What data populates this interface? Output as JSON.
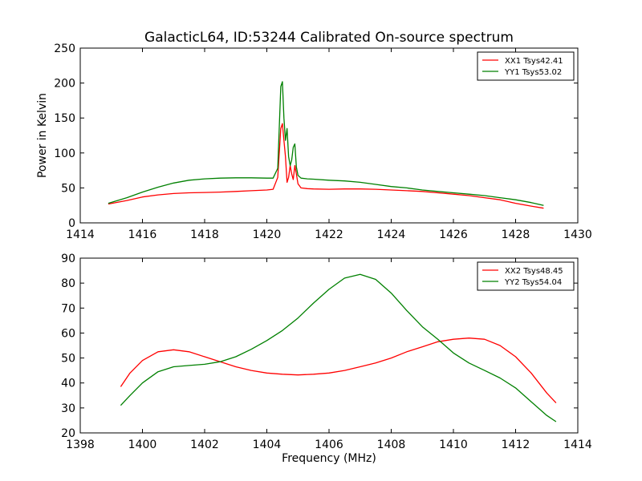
{
  "chart_data": [
    {
      "type": "line",
      "title": "GalacticL64, ID:53244 Calibrated On-source spectrum",
      "xlabel": "",
      "ylabel": "Power in Kelvin",
      "xlim": [
        1414,
        1430
      ],
      "ylim": [
        0,
        250
      ],
      "xticks": [
        "1414",
        "1416",
        "1418",
        "1420",
        "1422",
        "1424",
        "1426",
        "1428",
        "1430"
      ],
      "yticks": [
        "0",
        "50",
        "100",
        "150",
        "200",
        "250"
      ],
      "legend_position": "top-right",
      "grid": false,
      "series": [
        {
          "name": "XX1 Tsys42.41",
          "color": "#ff0000",
          "x": [
            1414.9,
            1415.5,
            1416.0,
            1416.5,
            1417.0,
            1417.5,
            1418.0,
            1418.5,
            1419.0,
            1419.5,
            1420.0,
            1420.2,
            1420.35,
            1420.45,
            1420.5,
            1420.55,
            1420.6,
            1420.65,
            1420.7,
            1420.75,
            1420.8,
            1420.85,
            1420.9,
            1420.95,
            1421.0,
            1421.1,
            1421.3,
            1421.5,
            1422.0,
            1422.5,
            1423.0,
            1423.5,
            1424.0,
            1424.5,
            1425.0,
            1425.5,
            1426.0,
            1426.5,
            1427.0,
            1427.5,
            1428.0,
            1428.5,
            1428.9
          ],
          "y": [
            27,
            32,
            37,
            40,
            42,
            43,
            43.5,
            44,
            45,
            46,
            47,
            48,
            65,
            135,
            142,
            118,
            95,
            58,
            65,
            82,
            70,
            62,
            82,
            70,
            56,
            50,
            49,
            48.5,
            48,
            48.5,
            48.5,
            48,
            47,
            46,
            45,
            43,
            41,
            39,
            36,
            33,
            28,
            24,
            21
          ]
        },
        {
          "name": "YY1 Tsys53.02",
          "color": "#008000",
          "x": [
            1414.9,
            1415.5,
            1416.0,
            1416.5,
            1417.0,
            1417.5,
            1418.0,
            1418.5,
            1419.0,
            1419.5,
            1420.0,
            1420.2,
            1420.35,
            1420.45,
            1420.5,
            1420.55,
            1420.6,
            1420.65,
            1420.7,
            1420.75,
            1420.8,
            1420.85,
            1420.9,
            1420.95,
            1421.0,
            1421.1,
            1421.3,
            1421.5,
            1422.0,
            1422.5,
            1423.0,
            1423.5,
            1424.0,
            1424.5,
            1425.0,
            1425.5,
            1426.0,
            1426.5,
            1427.0,
            1427.5,
            1428.0,
            1428.5,
            1428.9
          ],
          "y": [
            28,
            36,
            44,
            51,
            57,
            61,
            63,
            64,
            64.5,
            64.5,
            64,
            64,
            78,
            195,
            202,
            150,
            118,
            135,
            95,
            82,
            90,
            108,
            113,
            80,
            68,
            64,
            63,
            62.5,
            61,
            60,
            58,
            55,
            52,
            50,
            47,
            45,
            43,
            41,
            39,
            36,
            33,
            29,
            25
          ]
        }
      ]
    },
    {
      "type": "line",
      "title": "",
      "xlabel": "Frequency (MHz)",
      "ylabel": "",
      "xlim": [
        1398,
        1414
      ],
      "ylim": [
        20,
        90
      ],
      "xticks": [
        "1398",
        "1400",
        "1402",
        "1404",
        "1406",
        "1408",
        "1410",
        "1412",
        "1414"
      ],
      "yticks": [
        "20",
        "30",
        "40",
        "50",
        "60",
        "70",
        "80",
        "90"
      ],
      "legend_position": "top-right",
      "grid": false,
      "series": [
        {
          "name": "XX2 Tsys48.45",
          "color": "#ff0000",
          "x": [
            1399.3,
            1399.6,
            1400.0,
            1400.5,
            1401.0,
            1401.5,
            1402.0,
            1402.5,
            1403.0,
            1403.5,
            1404.0,
            1404.5,
            1405.0,
            1405.5,
            1406.0,
            1406.5,
            1407.0,
            1407.5,
            1408.0,
            1408.5,
            1409.0,
            1409.5,
            1410.0,
            1410.5,
            1411.0,
            1411.5,
            1412.0,
            1412.5,
            1413.0,
            1413.3
          ],
          "y": [
            38.5,
            44,
            49,
            52.5,
            53.3,
            52.5,
            50.5,
            48.5,
            46.5,
            45,
            44,
            43.5,
            43.2,
            43.5,
            44,
            45,
            46.5,
            48,
            50,
            52.5,
            54.5,
            56.5,
            57.5,
            58,
            57.5,
            55,
            50.5,
            44,
            36,
            32
          ]
        },
        {
          "name": "YY2 Tsys54.04",
          "color": "#008000",
          "x": [
            1399.3,
            1399.6,
            1400.0,
            1400.5,
            1401.0,
            1401.5,
            1402.0,
            1402.5,
            1403.0,
            1403.5,
            1404.0,
            1404.5,
            1405.0,
            1405.5,
            1406.0,
            1406.5,
            1407.0,
            1407.5,
            1408.0,
            1408.5,
            1409.0,
            1409.5,
            1410.0,
            1410.5,
            1411.0,
            1411.5,
            1412.0,
            1412.5,
            1413.0,
            1413.3
          ],
          "y": [
            31,
            35,
            40,
            44.5,
            46.5,
            47,
            47.5,
            48.5,
            50.5,
            53.5,
            57,
            61,
            66,
            72,
            77.5,
            82,
            83.5,
            81.5,
            76,
            69,
            62.5,
            57.5,
            52,
            48,
            45,
            42,
            38,
            32.5,
            27,
            24.5
          ]
        }
      ]
    }
  ]
}
